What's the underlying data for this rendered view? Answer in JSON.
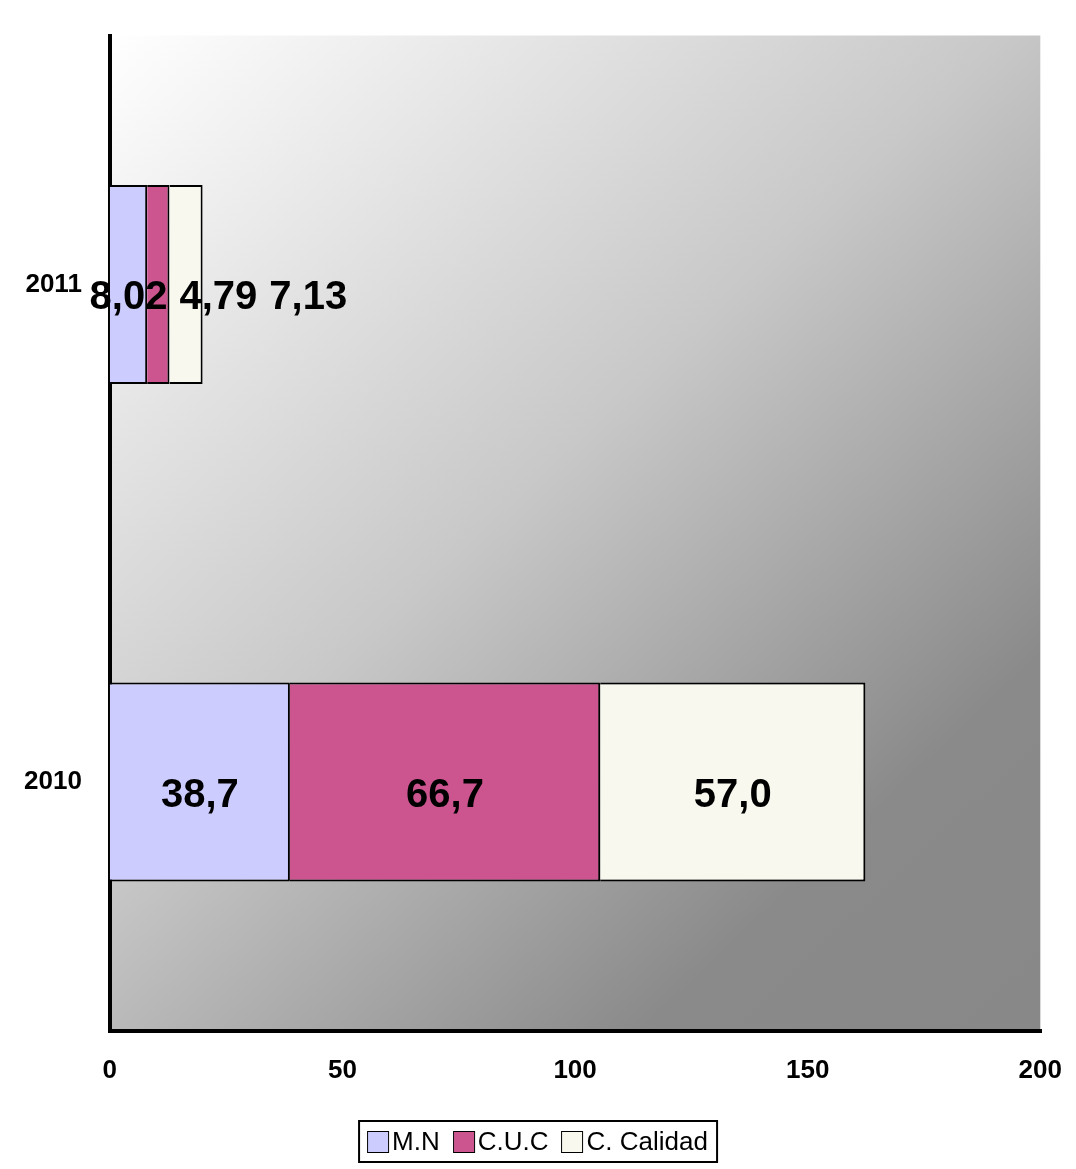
{
  "chart_data": {
    "type": "bar",
    "orientation": "horizontal",
    "stacked": true,
    "categories": [
      "2011",
      "2010"
    ],
    "series": [
      {
        "name": "M.N",
        "color": "#ccccff",
        "values": [
          8.02,
          38.7
        ],
        "value_labels": [
          "8,02",
          "38,7"
        ]
      },
      {
        "name": "C.U.C",
        "color": "#cc5590",
        "values": [
          4.79,
          66.7
        ],
        "value_labels": [
          "4,79",
          "66,7"
        ]
      },
      {
        "name": "C. Calidad",
        "color": "#f8f8ee",
        "values": [
          7.13,
          57.0
        ],
        "value_labels": [
          "7,13",
          "57,0"
        ]
      }
    ],
    "xlim": [
      0,
      200
    ],
    "xticks": [
      0,
      50,
      100,
      150,
      200
    ],
    "grid": false,
    "legend": "bottom"
  }
}
